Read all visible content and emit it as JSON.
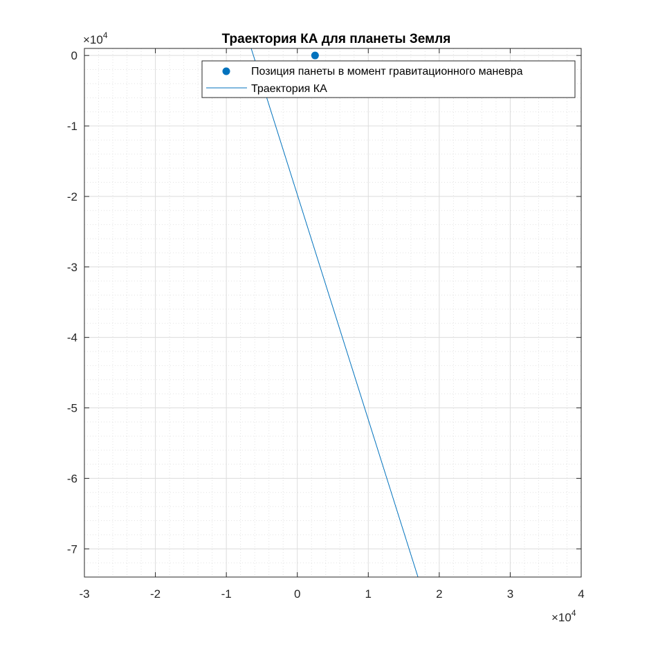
{
  "chart_data": {
    "type": "line",
    "title": "Траектория КА для планеты Земля",
    "xlabel": "",
    "ylabel": "",
    "x_multiplier_label": "×10",
    "x_multiplier_exp": "4",
    "y_multiplier_label": "×10",
    "y_multiplier_exp": "4",
    "xlim": [
      -30000,
      40000
    ],
    "ylim": [
      -74000,
      1000
    ],
    "x_ticks": [
      -30000,
      -20000,
      -10000,
      0,
      10000,
      20000,
      30000,
      40000
    ],
    "x_tick_labels": [
      "-3",
      "-2",
      "-1",
      "0",
      "1",
      "2",
      "3",
      "4"
    ],
    "y_ticks": [
      0,
      -10000,
      -20000,
      -30000,
      -40000,
      -50000,
      -60000,
      -70000
    ],
    "y_tick_labels": [
      "0",
      "-1",
      "-2",
      "-3",
      "-4",
      "-5",
      "-6",
      "-7"
    ],
    "grid": true,
    "minor_grid": true,
    "legend_position": "top-right",
    "series": [
      {
        "name": "Позиция панеты в момент гравитационного маневра",
        "kind": "marker",
        "color": "#0072BD",
        "x": [
          2500
        ],
        "y": [
          0
        ]
      },
      {
        "name": "Траектория КА",
        "kind": "line",
        "color": "#0072BD",
        "x": [
          -6500,
          17000
        ],
        "y": [
          1000,
          -74000
        ]
      }
    ]
  }
}
